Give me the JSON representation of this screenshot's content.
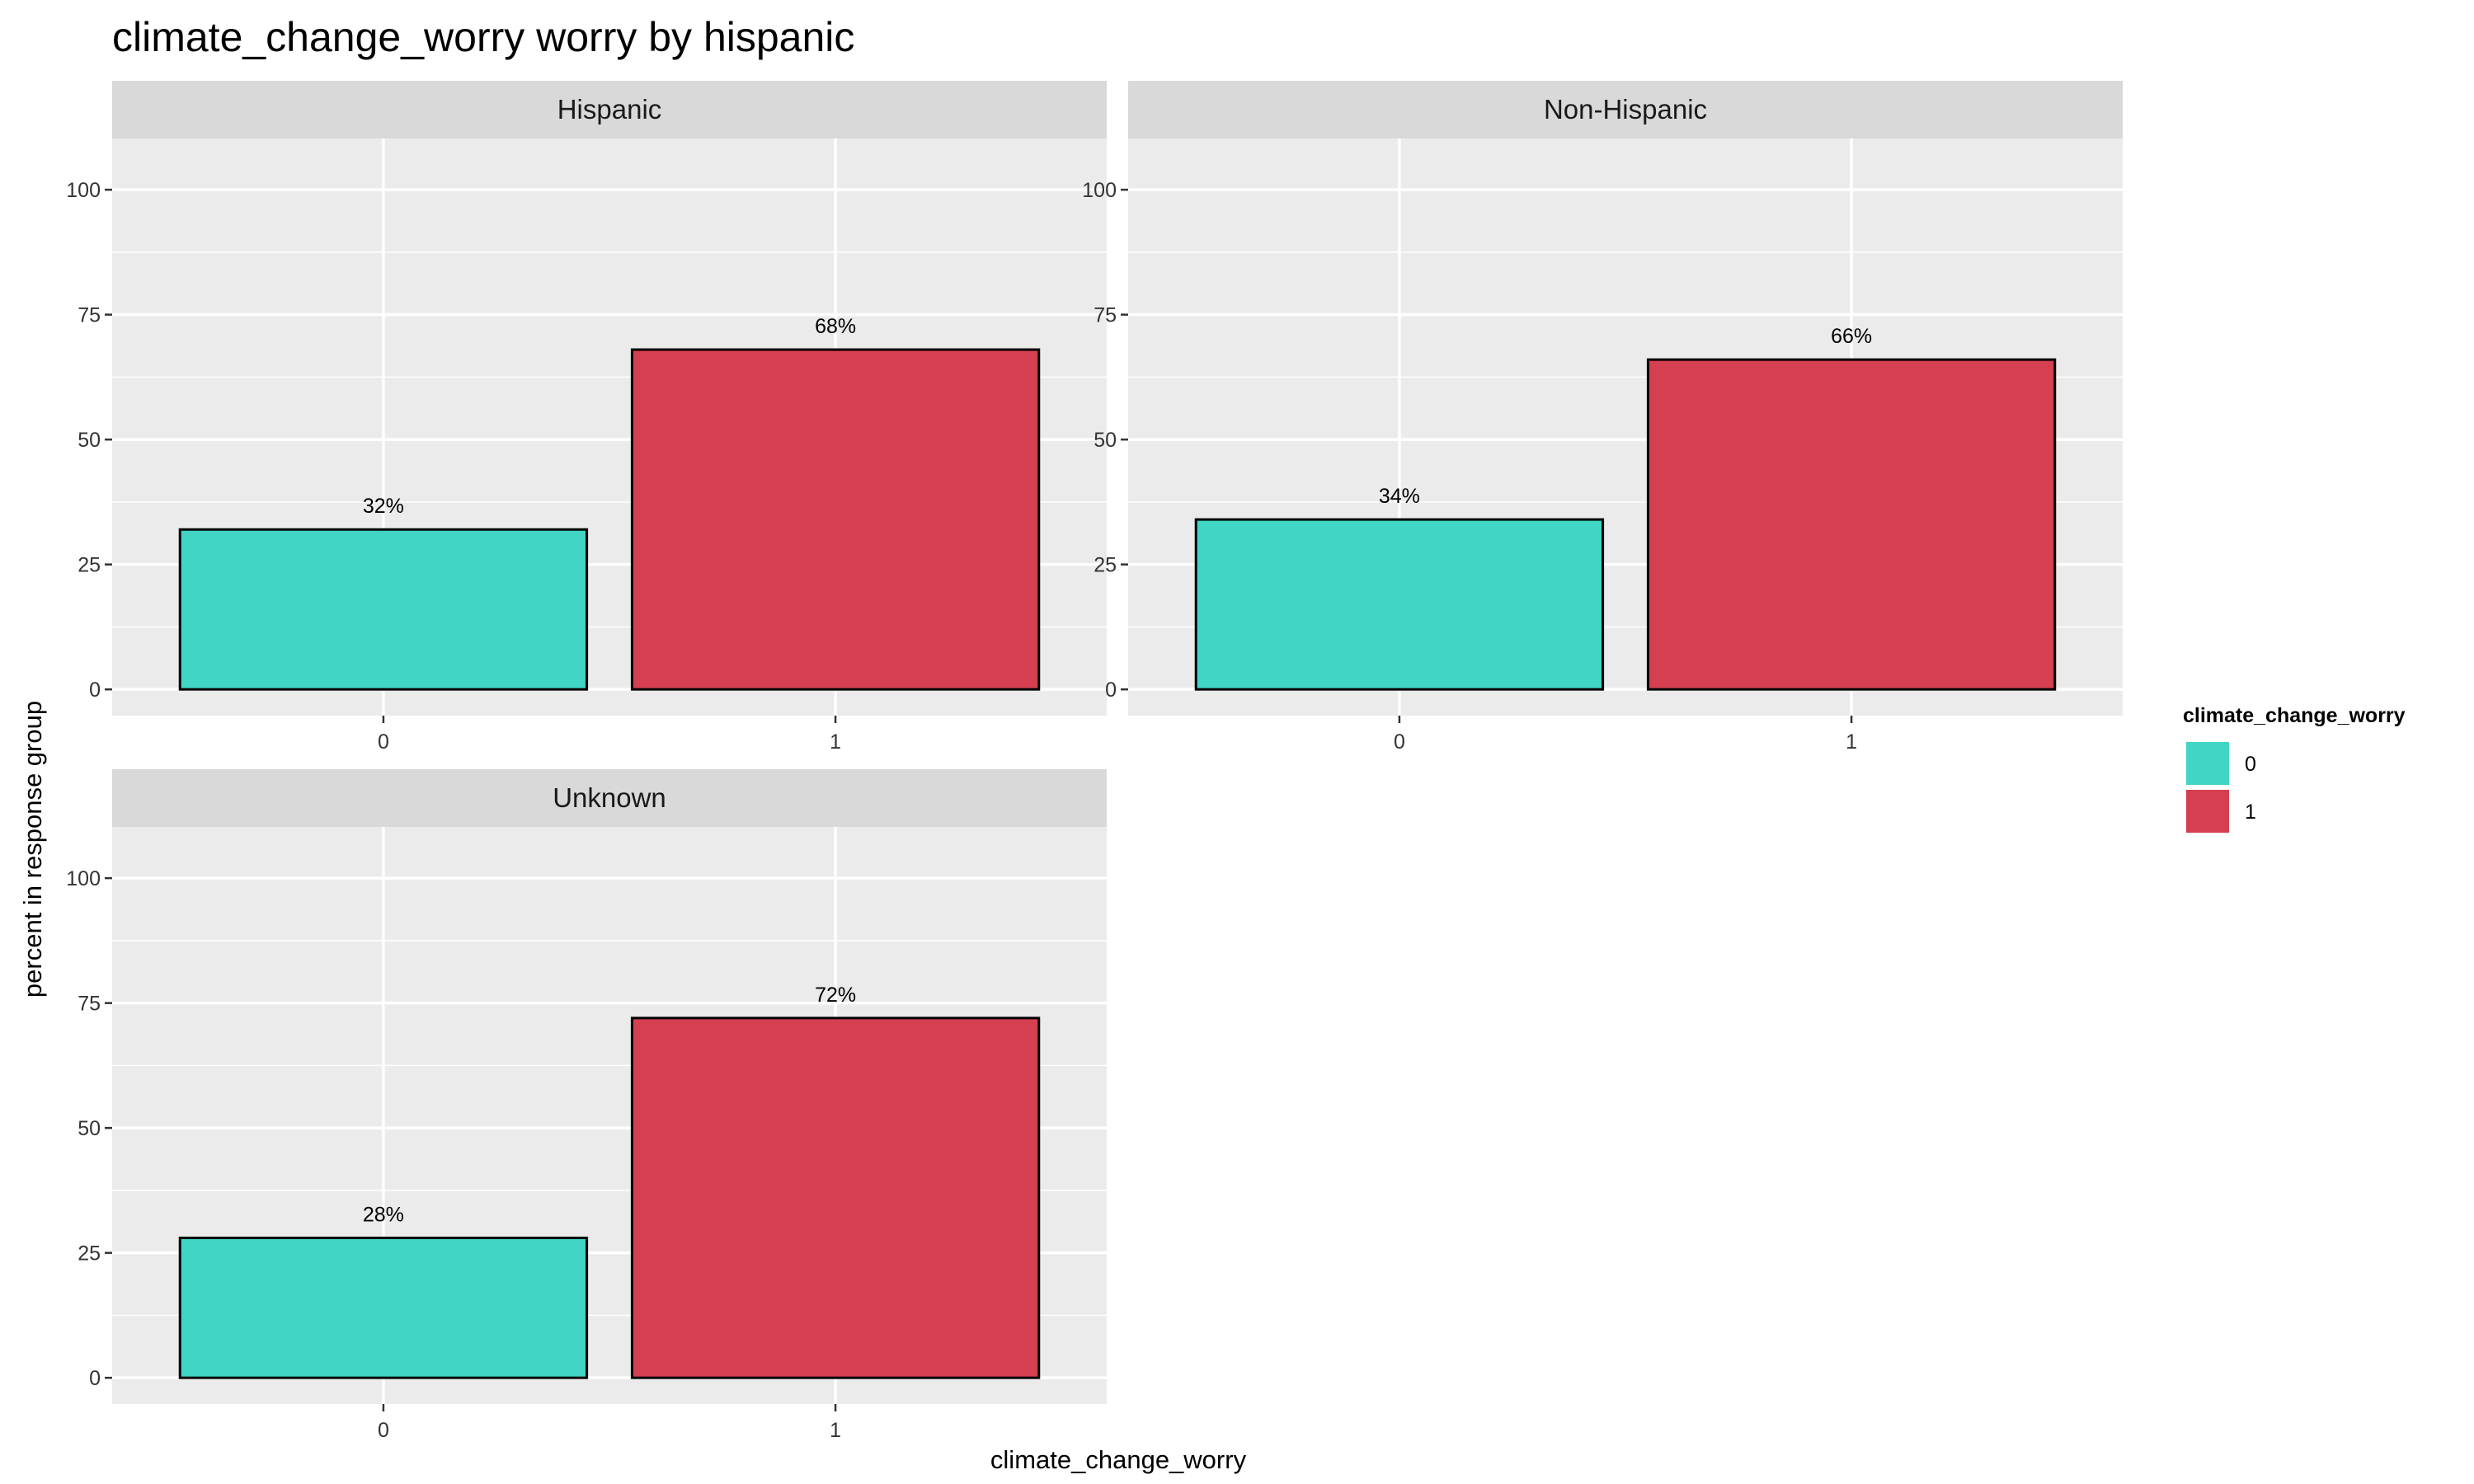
{
  "chart_data": {
    "type": "bar",
    "title": "climate_change_worry worry by hispanic",
    "xlabel": "climate_change_worry",
    "ylabel": "percent in response group",
    "ylim": [
      0,
      105
    ],
    "yticks": [
      0,
      25,
      50,
      75,
      100
    ],
    "categories": [
      "0",
      "1"
    ],
    "colors": {
      "0": "#40d5c4",
      "1": "#d53f50"
    },
    "panel_background": "#ebebeb",
    "grid": true,
    "legend": {
      "title": "climate_change_worry",
      "placement": "right",
      "entries": [
        "0",
        "1"
      ]
    },
    "facets": [
      {
        "name": "Hispanic",
        "values": [
          32,
          68
        ],
        "labels": [
          "32%",
          "68%"
        ]
      },
      {
        "name": "Non-Hispanic",
        "values": [
          34,
          66
        ],
        "labels": [
          "34%",
          "66%"
        ]
      },
      {
        "name": "Unknown",
        "values": [
          28,
          72
        ],
        "labels": [
          "28%",
          "72%"
        ]
      }
    ]
  }
}
